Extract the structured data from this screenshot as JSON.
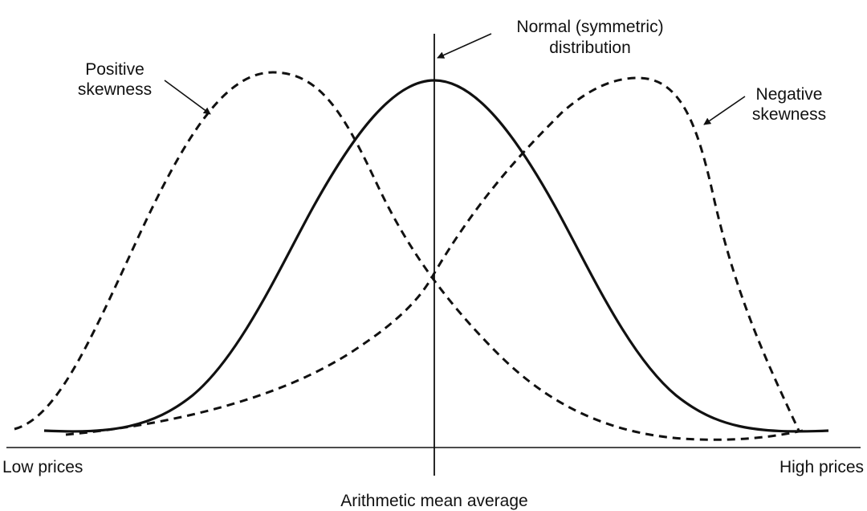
{
  "labels": {
    "normal_line1": "Normal (symmetric)",
    "normal_line2": "distribution",
    "positive_line1": "Positive",
    "positive_line2": "skewness",
    "negative_line1": "Negative",
    "negative_line2": "skewness",
    "x_low": "Low prices",
    "x_high": "High prices",
    "mean": "Arithmetic mean average"
  },
  "curves": [
    {
      "name": "normal",
      "style": "solid"
    },
    {
      "name": "positive-skewness",
      "style": "dashed"
    },
    {
      "name": "negative-skewness",
      "style": "dashed"
    }
  ],
  "colors": {
    "line": "#111111",
    "background": "#ffffff"
  }
}
